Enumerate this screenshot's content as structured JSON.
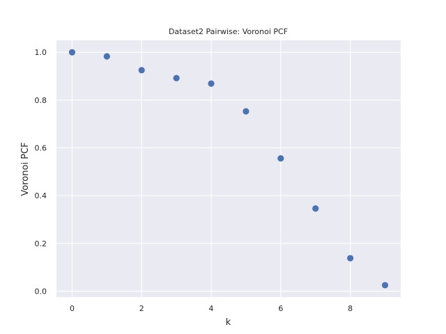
{
  "chart_data": {
    "type": "scatter",
    "title": "Dataset2 Pairwise: Voronoi PCF",
    "xlabel": "k",
    "ylabel": "Voronoi PCF",
    "x": [
      0,
      1,
      2,
      3,
      4,
      5,
      6,
      7,
      8,
      9
    ],
    "y": [
      1.0,
      0.983,
      0.925,
      0.892,
      0.869,
      0.753,
      0.556,
      0.346,
      0.138,
      0.025
    ],
    "xlim": [
      -0.45,
      9.45
    ],
    "ylim": [
      -0.025,
      1.05
    ],
    "xticks": [
      0,
      2,
      4,
      6,
      8
    ],
    "xtick_labels": [
      "0",
      "2",
      "4",
      "6",
      "8"
    ],
    "yticks": [
      0.0,
      0.2,
      0.4,
      0.6,
      0.8,
      1.0
    ],
    "ytick_labels": [
      "0.0",
      "0.2",
      "0.4",
      "0.6",
      "0.8",
      "1.0"
    ],
    "grid": true,
    "legend": "none",
    "colors": {
      "background": "#eaeaf2",
      "grid": "#ffffff",
      "marker": "#4c72b0",
      "text": "#262626"
    }
  }
}
